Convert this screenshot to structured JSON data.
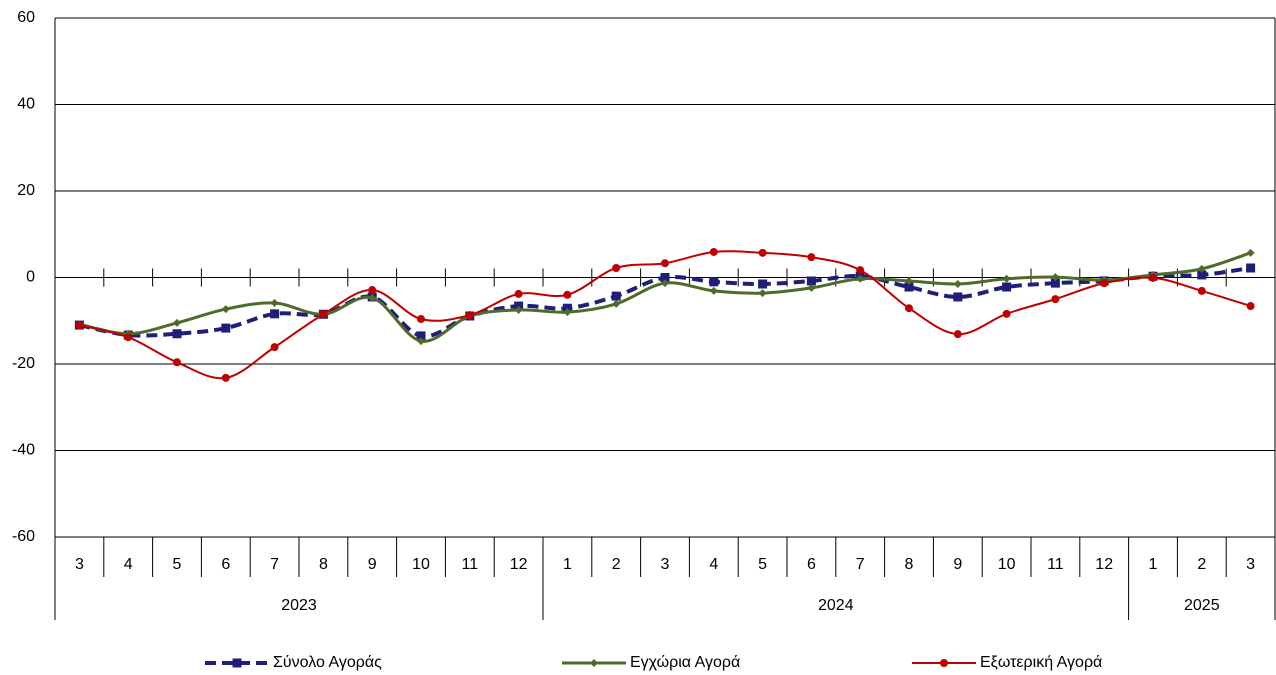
{
  "chart_data": {
    "type": "line",
    "category_groups": [
      {
        "label": "2023",
        "categories": [
          "3",
          "4",
          "5",
          "6",
          "7",
          "8",
          "9",
          "10",
          "11",
          "12"
        ]
      },
      {
        "label": "2024",
        "categories": [
          "1",
          "2",
          "3",
          "4",
          "5",
          "6",
          "7",
          "8",
          "9",
          "10",
          "11",
          "12"
        ]
      },
      {
        "label": "2025",
        "categories": [
          "1",
          "2",
          "3"
        ]
      }
    ],
    "ylim": [
      -60,
      60
    ],
    "yticks": [
      -60,
      -40,
      -20,
      0,
      20,
      40,
      60
    ],
    "grid": true,
    "smooth": true,
    "legend": "bottom",
    "series": [
      {
        "name": "Σύνολο Αγοράς",
        "color": "#1f1f7a",
        "line_style": "dashed",
        "marker": "square",
        "values": [
          -11,
          -13.3,
          -13,
          -11.7,
          -8.4,
          -8.5,
          -4.5,
          -13.5,
          -8.9,
          -6.6,
          -7.1,
          -4.3,
          0,
          -1,
          -1.5,
          -0.8,
          0.3,
          -2.2,
          -4.5,
          -2.2,
          -1.3,
          -0.8,
          0.3,
          0.6,
          2.2
        ]
      },
      {
        "name": "Εγχώρια Αγορά",
        "color": "#4f6b2a",
        "line_style": "solid",
        "marker": "diamond",
        "values": [
          -10.8,
          -13,
          -10.5,
          -7.3,
          -5.9,
          -8.5,
          -4.7,
          -14.7,
          -8.9,
          -7.5,
          -8,
          -6.1,
          -1.3,
          -3.1,
          -3.6,
          -2.4,
          -0.3,
          -0.8,
          -1.5,
          -0.3,
          0.1,
          -0.6,
          0.6,
          2,
          5.7
        ]
      },
      {
        "name": "Εξωτερική Αγορά",
        "color": "#c00000",
        "line_style": "solid",
        "marker": "circle",
        "values": [
          -11,
          -13.8,
          -19.6,
          -23.2,
          -16.1,
          -8.5,
          -2.9,
          -9.6,
          -8.7,
          -3.8,
          -4,
          2.2,
          3.3,
          5.9,
          5.7,
          4.7,
          1.7,
          -7.1,
          -13.1,
          -8.4,
          -5,
          -1.3,
          -0.1,
          -3.1,
          -6.6
        ]
      }
    ]
  }
}
